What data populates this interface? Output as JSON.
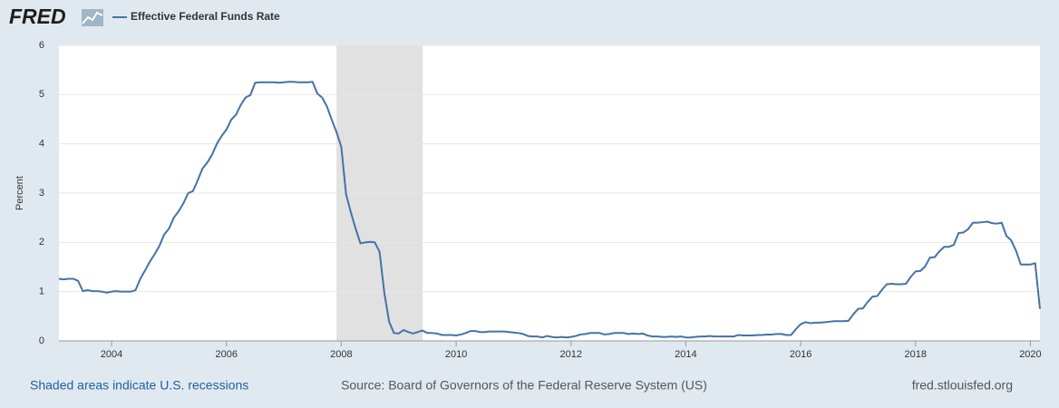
{
  "chart_data": {
    "type": "line",
    "logo": "FRED",
    "ylabel": "Percent",
    "footer_left": "Shaded areas indicate U.S. recessions",
    "footer_source": "Source: Board of Governors of the Federal Reserve System (US)",
    "footer_right": "fred.stlouisfed.org",
    "xlim": [
      2003.0833,
      2020.1667
    ],
    "xticks": [
      2004,
      2006,
      2008,
      2010,
      2012,
      2014,
      2016,
      2018,
      2020
    ],
    "ylim": [
      0,
      6
    ],
    "yticks": [
      0,
      1,
      2,
      3,
      4,
      5,
      6
    ],
    "grid": true,
    "recessions": [
      [
        2007.9167,
        2009.4167
      ]
    ],
    "recession_color": "#e1e1e1",
    "x": [
      2003.0833,
      2003.1667,
      2003.25,
      2003.3333,
      2003.4167,
      2003.5,
      2003.5833,
      2003.6667,
      2003.75,
      2003.8333,
      2003.9167,
      2004,
      2004.0833,
      2004.1667,
      2004.25,
      2004.3333,
      2004.4167,
      2004.5,
      2004.5833,
      2004.6667,
      2004.75,
      2004.8333,
      2004.9167,
      2005,
      2005.0833,
      2005.1667,
      2005.25,
      2005.3333,
      2005.4167,
      2005.5,
      2005.5833,
      2005.6667,
      2005.75,
      2005.8333,
      2005.9167,
      2006,
      2006.0833,
      2006.1667,
      2006.25,
      2006.3333,
      2006.4167,
      2006.5,
      2006.5833,
      2006.6667,
      2006.75,
      2006.8333,
      2006.9167,
      2007,
      2007.0833,
      2007.1667,
      2007.25,
      2007.3333,
      2007.4167,
      2007.5,
      2007.5833,
      2007.6667,
      2007.75,
      2007.8333,
      2007.9167,
      2008,
      2008.0833,
      2008.1667,
      2008.25,
      2008.3333,
      2008.4167,
      2008.5,
      2008.5833,
      2008.6667,
      2008.75,
      2008.8333,
      2008.9167,
      2009,
      2009.0833,
      2009.1667,
      2009.25,
      2009.3333,
      2009.4167,
      2009.5,
      2009.5833,
      2009.6667,
      2009.75,
      2009.8333,
      2009.9167,
      2010,
      2010.0833,
      2010.1667,
      2010.25,
      2010.3333,
      2010.4167,
      2010.5,
      2010.5833,
      2010.6667,
      2010.75,
      2010.8333,
      2010.9167,
      2011,
      2011.0833,
      2011.1667,
      2011.25,
      2011.3333,
      2011.4167,
      2011.5,
      2011.5833,
      2011.6667,
      2011.75,
      2011.8333,
      2011.9167,
      2012,
      2012.0833,
      2012.1667,
      2012.25,
      2012.3333,
      2012.4167,
      2012.5,
      2012.5833,
      2012.6667,
      2012.75,
      2012.8333,
      2012.9167,
      2013,
      2013.0833,
      2013.1667,
      2013.25,
      2013.3333,
      2013.4167,
      2013.5,
      2013.5833,
      2013.6667,
      2013.75,
      2013.8333,
      2013.9167,
      2014,
      2014.0833,
      2014.1667,
      2014.25,
      2014.3333,
      2014.4167,
      2014.5,
      2014.5833,
      2014.6667,
      2014.75,
      2014.8333,
      2014.9167,
      2015,
      2015.0833,
      2015.1667,
      2015.25,
      2015.3333,
      2015.4167,
      2015.5,
      2015.5833,
      2015.6667,
      2015.75,
      2015.8333,
      2015.9167,
      2016,
      2016.0833,
      2016.1667,
      2016.25,
      2016.3333,
      2016.4167,
      2016.5,
      2016.5833,
      2016.6667,
      2016.75,
      2016.8333,
      2016.9167,
      2017,
      2017.0833,
      2017.1667,
      2017.25,
      2017.3333,
      2017.4167,
      2017.5,
      2017.5833,
      2017.6667,
      2017.75,
      2017.8333,
      2017.9167,
      2018,
      2018.0833,
      2018.1667,
      2018.25,
      2018.3333,
      2018.4167,
      2018.5,
      2018.5833,
      2018.6667,
      2018.75,
      2018.8333,
      2018.9167,
      2019,
      2019.0833,
      2019.1667,
      2019.25,
      2019.3333,
      2019.4167,
      2019.5,
      2019.5833,
      2019.6667,
      2019.75,
      2019.8333,
      2019.9167,
      2020,
      2020.0833,
      2020.1667
    ],
    "series": [
      {
        "name": "Effective Federal Funds Rate",
        "color": "#4572a7",
        "values": [
          1.26,
          1.25,
          1.26,
          1.26,
          1.22,
          1.01,
          1.03,
          1.01,
          1.01,
          1.0,
          0.98,
          1.0,
          1.01,
          1.0,
          1.0,
          1.0,
          1.03,
          1.26,
          1.43,
          1.61,
          1.76,
          1.93,
          2.16,
          2.28,
          2.5,
          2.63,
          2.79,
          3.0,
          3.04,
          3.26,
          3.5,
          3.62,
          3.78,
          4.0,
          4.16,
          4.29,
          4.49,
          4.59,
          4.79,
          4.94,
          4.99,
          5.24,
          5.25,
          5.25,
          5.25,
          5.25,
          5.24,
          5.25,
          5.26,
          5.26,
          5.25,
          5.25,
          5.25,
          5.26,
          5.02,
          4.94,
          4.76,
          4.49,
          4.24,
          3.94,
          2.98,
          2.61,
          2.28,
          1.98,
          2.0,
          2.01,
          2.0,
          1.81,
          0.97,
          0.39,
          0.16,
          0.15,
          0.22,
          0.18,
          0.15,
          0.18,
          0.21,
          0.16,
          0.16,
          0.15,
          0.12,
          0.12,
          0.12,
          0.11,
          0.13,
          0.16,
          0.2,
          0.2,
          0.18,
          0.18,
          0.19,
          0.19,
          0.19,
          0.19,
          0.18,
          0.17,
          0.16,
          0.14,
          0.1,
          0.09,
          0.09,
          0.07,
          0.1,
          0.08,
          0.07,
          0.08,
          0.07,
          0.08,
          0.1,
          0.13,
          0.14,
          0.16,
          0.16,
          0.16,
          0.13,
          0.14,
          0.16,
          0.16,
          0.16,
          0.14,
          0.15,
          0.14,
          0.15,
          0.11,
          0.09,
          0.09,
          0.08,
          0.08,
          0.09,
          0.08,
          0.09,
          0.07,
          0.07,
          0.08,
          0.09,
          0.09,
          0.1,
          0.09,
          0.09,
          0.09,
          0.09,
          0.09,
          0.12,
          0.11,
          0.11,
          0.11,
          0.12,
          0.12,
          0.13,
          0.13,
          0.14,
          0.14,
          0.12,
          0.12,
          0.24,
          0.34,
          0.38,
          0.36,
          0.37,
          0.37,
          0.38,
          0.39,
          0.4,
          0.4,
          0.4,
          0.41,
          0.54,
          0.65,
          0.66,
          0.79,
          0.9,
          0.91,
          1.04,
          1.15,
          1.16,
          1.15,
          1.15,
          1.16,
          1.3,
          1.41,
          1.42,
          1.51,
          1.69,
          1.7,
          1.82,
          1.91,
          1.91,
          1.95,
          2.19,
          2.2,
          2.27,
          2.4,
          2.4,
          2.41,
          2.42,
          2.39,
          2.38,
          2.4,
          2.13,
          2.04,
          1.83,
          1.55,
          1.55,
          1.55,
          1.58,
          0.65
        ]
      }
    ]
  }
}
